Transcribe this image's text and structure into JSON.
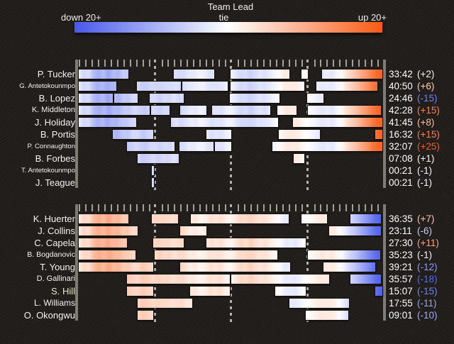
{
  "legend": {
    "title": "Team Lead",
    "left_label": "down 20+",
    "center_label": "tie",
    "right_label": "up 20+"
  },
  "colors": {
    "down": "#4759ea",
    "tie": "#ffffff",
    "up": "#f85a14",
    "background": "#211e1c",
    "rail": "#807c76",
    "tick": "#a49f99",
    "name_text": "#f4f3f1",
    "time_text": "#ffffff",
    "hill_name_tint": "#eae7bd"
  },
  "chart_data": {
    "type": "gantt-rotation",
    "title": "Team Lead",
    "x_axis": {
      "unit": "minutes",
      "range": [
        0,
        48
      ],
      "quarter_marks": [
        12,
        24,
        36
      ],
      "minor_tick_every": 1
    },
    "lead_scale": {
      "min": -20,
      "max": 20,
      "zero_label": "tie",
      "min_label": "down 20+",
      "max_label": "up 20+"
    },
    "lead_timeline_home_perspective": [
      [
        0,
        -2
      ],
      [
        0.8,
        -5
      ],
      [
        1.6,
        -4
      ],
      [
        2.4,
        -8
      ],
      [
        3.2,
        -10
      ],
      [
        4,
        -8
      ],
      [
        4.8,
        -11
      ],
      [
        5.6,
        -8
      ],
      [
        6.4,
        -9
      ],
      [
        7.2,
        -6
      ],
      [
        8,
        -7
      ],
      [
        8.8,
        -4
      ],
      [
        9.6,
        -5
      ],
      [
        10.4,
        -7
      ],
      [
        11.2,
        -5
      ],
      [
        12,
        -4
      ],
      [
        12.8,
        -6
      ],
      [
        13.6,
        -4
      ],
      [
        14.4,
        -5
      ],
      [
        15.2,
        -3
      ],
      [
        16,
        -5
      ],
      [
        16.8,
        -4
      ],
      [
        17.6,
        -2
      ],
      [
        18.4,
        -3
      ],
      [
        19.2,
        -1
      ],
      [
        20,
        -2
      ],
      [
        20.8,
        -4
      ],
      [
        21.6,
        -3
      ],
      [
        22.4,
        -4
      ],
      [
        23.2,
        -2
      ],
      [
        24,
        -1
      ],
      [
        24.8,
        -3
      ],
      [
        25.6,
        -5
      ],
      [
        26.4,
        -4
      ],
      [
        27.2,
        -6
      ],
      [
        28,
        -4
      ],
      [
        28.8,
        -3
      ],
      [
        29.6,
        -4
      ],
      [
        30.4,
        -2
      ],
      [
        31.2,
        -1
      ],
      [
        32,
        1
      ],
      [
        32.8,
        3
      ],
      [
        33.6,
        2
      ],
      [
        34.4,
        3
      ],
      [
        35.2,
        1
      ],
      [
        36,
        0
      ],
      [
        36.8,
        -1
      ],
      [
        37.6,
        -2
      ],
      [
        38.4,
        -3
      ],
      [
        39.2,
        -2
      ],
      [
        40,
        -3
      ],
      [
        40.8,
        -1
      ],
      [
        41.6,
        1
      ],
      [
        42.4,
        4
      ],
      [
        43.2,
        6
      ],
      [
        44,
        8
      ],
      [
        44.8,
        11
      ],
      [
        45.6,
        13
      ],
      [
        46.4,
        16
      ],
      [
        47.2,
        18
      ],
      [
        48,
        19
      ]
    ],
    "teams": [
      {
        "perspective": 1,
        "players": [
          {
            "name": "P. Tucker",
            "minutes": "33:42",
            "pm_label": "(+2)",
            "pm_value": 2,
            "stints": [
              [
                0,
                8.0
              ],
              [
                14.9,
                21.5
              ],
              [
                23.9,
                33.4
              ],
              [
                35.0,
                36.3
              ],
              [
                38.3,
                48
              ]
            ]
          },
          {
            "name": "G. Antetokounmpo",
            "minutes": "40:50",
            "pm_label": "(+6)",
            "pm_value": 6,
            "stints": [
              [
                0,
                6.1
              ],
              [
                9.2,
                16.3
              ],
              [
                16.3,
                23.7
              ],
              [
                23.9,
                35.7
              ],
              [
                37.4,
                47.2
              ]
            ]
          },
          {
            "name": "B. Lopez",
            "minutes": "24:46",
            "pm_label": "(-15)",
            "pm_value": -15,
            "stints": [
              [
                0,
                5.6
              ],
              [
                5.6,
                9.5
              ],
              [
                11.2,
                16.7
              ],
              [
                23.8,
                31.8
              ],
              [
                35.9,
                38.7
              ]
            ]
          },
          {
            "name": "K. Middleton",
            "minutes": "42:28",
            "pm_label": "(+15)",
            "pm_value": 15,
            "stints": [
              [
                0,
                11.4
              ],
              [
                11.4,
                14.5
              ],
              [
                16.0,
                20.3
              ],
              [
                21.0,
                30.4
              ],
              [
                31.3,
                34.5
              ],
              [
                36.1,
                47.8
              ]
            ]
          },
          {
            "name": "J. Holiday",
            "minutes": "41:45",
            "pm_label": "(+8)",
            "pm_value": 8,
            "stints": [
              [
                0,
                9.3
              ],
              [
                14.5,
                31.6
              ],
              [
                33.7,
                48
              ]
            ]
          },
          {
            "name": "B. Portis",
            "minutes": "16:32",
            "pm_label": "(+15)",
            "pm_value": 15,
            "stints": [
              [
                5.4,
                11.9
              ],
              [
                20.1,
                24.2
              ],
              [
                31.5,
                38.2
              ],
              [
                46.7,
                48
              ]
            ]
          },
          {
            "name": "P. Connaughton",
            "minutes": "32:07",
            "pm_label": "(+25)",
            "pm_value": 25,
            "stints": [
              [
                7.6,
                15.3
              ],
              [
                15.9,
                21.4
              ],
              [
                21.4,
                24.2
              ],
              [
                30.5,
                48
              ]
            ]
          },
          {
            "name": "B. Forbes",
            "minutes": "07:08",
            "pm_label": "(+1)",
            "pm_value": 1,
            "stints": [
              [
                9.3,
                16.0
              ],
              [
                33.8,
                35.7
              ]
            ]
          },
          {
            "name": "T. Antetokounmpo",
            "minutes": "00:21",
            "pm_label": "(-1)",
            "pm_value": -1,
            "stints": [
              [
                11.5,
                12.1
              ]
            ]
          },
          {
            "name": "J. Teague",
            "minutes": "00:21",
            "pm_label": "(-1)",
            "pm_value": -1,
            "stints": [
              [
                11.5,
                12.1
              ]
            ]
          }
        ]
      },
      {
        "perspective": -1,
        "players": [
          {
            "name": "K. Huerter",
            "minutes": "36:35",
            "pm_label": "(+7)",
            "pm_value": 7,
            "stints": [
              [
                0,
                8.0
              ],
              [
                11.5,
                15.8
              ],
              [
                17.6,
                33.3
              ],
              [
                35.1,
                39.3
              ],
              [
                42.7,
                47.8
              ]
            ]
          },
          {
            "name": "J. Collins",
            "minutes": "23:11",
            "pm_label": "(-6)",
            "pm_value": -6,
            "stints": [
              [
                0,
                9.5
              ],
              [
                16.0,
                20.3
              ],
              [
                39.4,
                47.8
              ]
            ]
          },
          {
            "name": "C. Capela",
            "minutes": "27:30",
            "pm_label": "(+11)",
            "pm_value": 11,
            "stints": [
              [
                0,
                7.8
              ],
              [
                11.7,
                16.7
              ],
              [
                20.1,
                35.9
              ]
            ]
          },
          {
            "name": "B. Bogdanovic",
            "minutes": "35:23",
            "pm_label": "(-1)",
            "pm_value": -1,
            "stints": [
              [
                0,
                9.1
              ],
              [
                11.9,
                31.5
              ],
              [
                36.0,
                47.7
              ]
            ]
          },
          {
            "name": "T. Young",
            "minutes": "39:21",
            "pm_label": "(-12)",
            "pm_value": -12,
            "stints": [
              [
                0,
                11.9
              ],
              [
                16.0,
                33.5
              ],
              [
                38.5,
                46.9
              ]
            ]
          },
          {
            "name": "D. Gallinari",
            "minutes": "35:57",
            "pm_label": "(-18)",
            "pm_value": -18,
            "stints": [
              [
                7.6,
                24.0
              ],
              [
                24.0,
                39.6
              ],
              [
                42.7,
                47.8
              ]
            ]
          },
          {
            "name": "S. Hill",
            "minutes": "15:07",
            "pm_label": "(-15)",
            "pm_value": -15,
            "stints": [
              [
                7.6,
                11.9
              ],
              [
                17.5,
                24.0
              ],
              [
                30.9,
                35.9
              ],
              [
                46.7,
                48
              ]
            ]
          },
          {
            "name": "L. Williams",
            "minutes": "17:55",
            "pm_label": "(-11)",
            "pm_value": -11,
            "stints": [
              [
                9.3,
                18.1
              ],
              [
                33.2,
                42.8
              ]
            ]
          },
          {
            "name": "O. Okongwu",
            "minutes": "09:01",
            "pm_label": "(-10)",
            "pm_value": -10,
            "stints": [
              [
                9.3,
                11.9
              ],
              [
                35.7,
                42.6
              ]
            ]
          }
        ]
      }
    ]
  }
}
